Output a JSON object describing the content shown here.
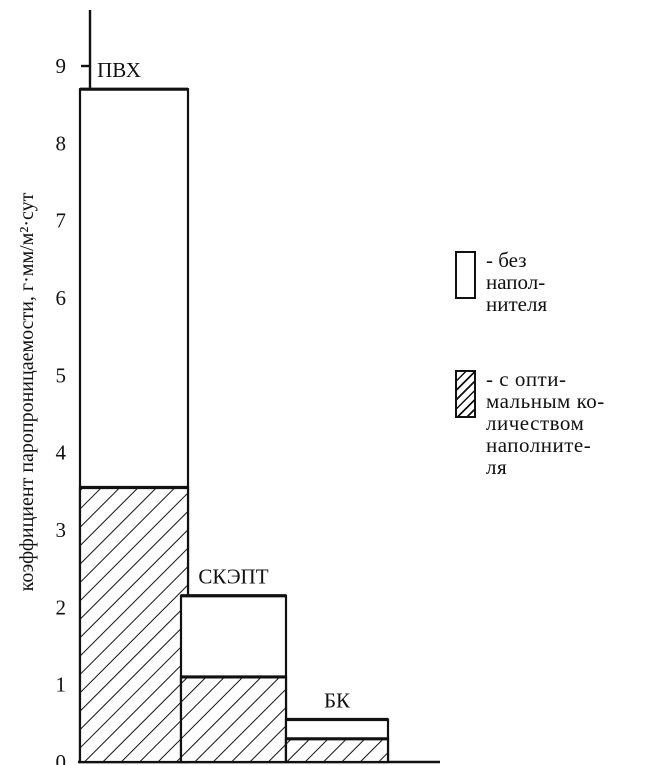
{
  "chart_data": {
    "type": "bar",
    "title": "",
    "ylabel": "коэффициент паропроницаемости, г·мм/м²·сут",
    "xlabel": "",
    "ylim": [
      0,
      9.5
    ],
    "yticks": [
      "0",
      "1",
      "2",
      "3",
      "4",
      "5",
      "6",
      "7",
      "8",
      "9"
    ],
    "categories": [
      "ПВХ",
      "СКЭПТ",
      "БК"
    ],
    "series": [
      {
        "name": "- без напол-\nнителя",
        "values": [
          8.7,
          2.15,
          0.55
        ],
        "style": "unfilled"
      },
      {
        "name": "- с опти-\nмальным ко-\nличеством\nнаполните-\nля",
        "values": [
          3.55,
          1.1,
          0.3
        ],
        "style": "hatched"
      }
    ],
    "legend_position": "right",
    "grid": false
  },
  "colors": {
    "ink": "#111111",
    "background": "#ffffff"
  }
}
